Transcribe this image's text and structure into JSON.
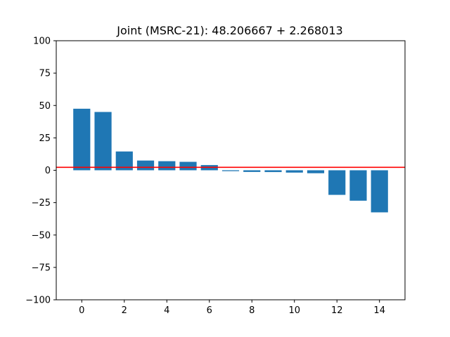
{
  "chart_data": {
    "type": "bar",
    "title": "Joint (MSRC-21): 48.206667 + 2.268013",
    "xlabel": "",
    "ylabel": "",
    "x": [
      0,
      1,
      2,
      3,
      4,
      5,
      6,
      7,
      8,
      9,
      10,
      11,
      12,
      13,
      14
    ],
    "values": [
      47.5,
      45.0,
      14.5,
      7.5,
      7.0,
      6.5,
      4.0,
      -0.7,
      -1.3,
      -1.4,
      -1.8,
      -2.3,
      -19.0,
      -23.5,
      -32.5
    ],
    "bar_color": "#1f77b4",
    "reference_line": {
      "y": 2.268013,
      "color": "#ff0000"
    },
    "xlim": [
      -1.2,
      15.2
    ],
    "ylim": [
      -100,
      100
    ],
    "xticks": [
      0,
      2,
      4,
      6,
      8,
      10,
      12,
      14
    ],
    "yticks": [
      -100,
      -75,
      -50,
      -25,
      0,
      25,
      50,
      75,
      100
    ],
    "grid": false,
    "legend": "none"
  }
}
